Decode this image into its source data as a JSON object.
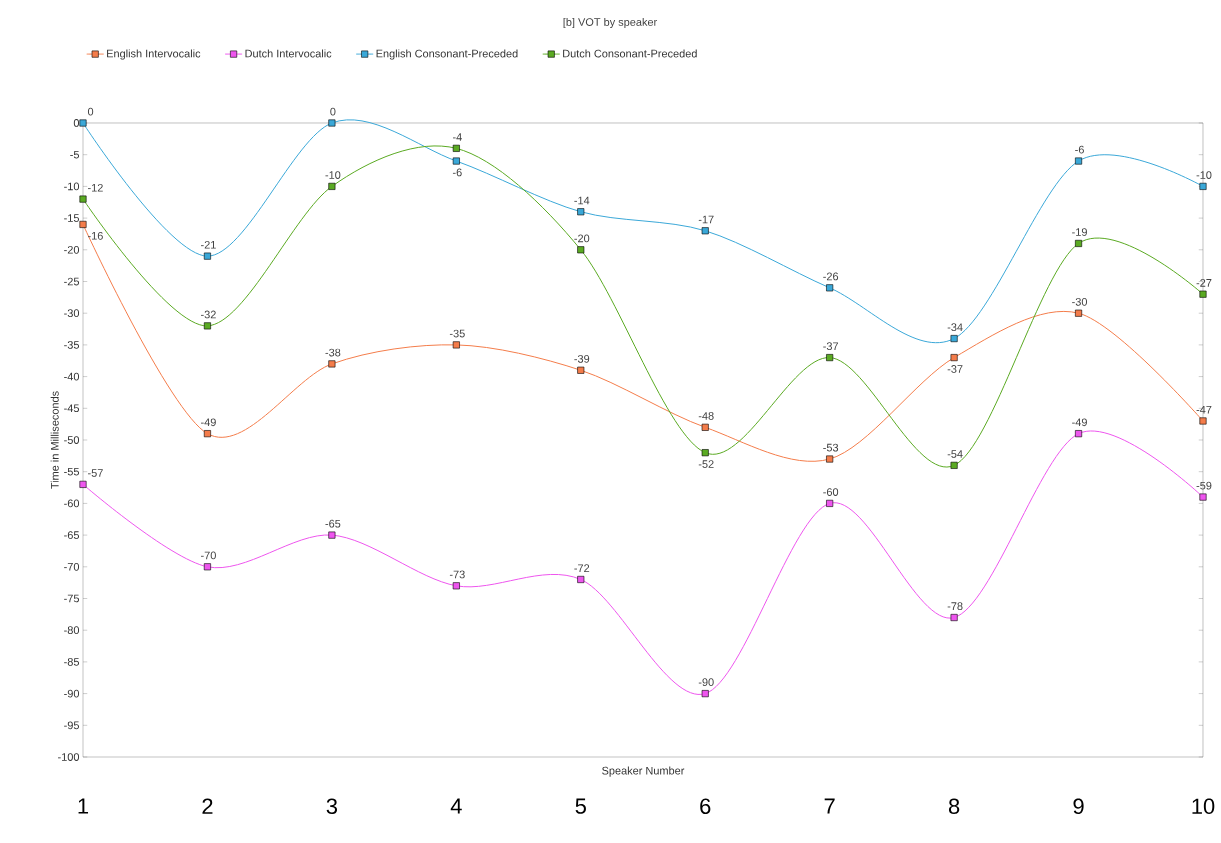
{
  "chart_data": {
    "type": "line",
    "title": "[b] VOT by speaker",
    "xlabel": "Speaker Number",
    "ylabel": "Time in Milliseconds",
    "categories": [
      "1",
      "2",
      "3",
      "4",
      "5",
      "6",
      "7",
      "8",
      "9",
      "10"
    ],
    "series": [
      {
        "name": "English Intervocalic",
        "color": "#f47c4a",
        "values": [
          -16,
          -49,
          -38,
          -35,
          -39,
          -48,
          -53,
          -37,
          -30,
          -47
        ],
        "value_labels": [
          "-16",
          "-49",
          "-38",
          "-35",
          "-39",
          "-48",
          "-53",
          "-37",
          "-30",
          "-47"
        ]
      },
      {
        "name": "Dutch Intervocalic",
        "color": "#ee55ee",
        "values": [
          -57,
          -70,
          -65,
          -73,
          -72,
          -90,
          -60,
          -78,
          -49,
          -59
        ],
        "value_labels": [
          "-57",
          "-70",
          "-65",
          "-73",
          "-72",
          "-90",
          "-60",
          "-78",
          "-49",
          "-59"
        ]
      },
      {
        "name": "English Consonant-Preceded",
        "color": "#3aa8d8",
        "values": [
          0,
          -21,
          0,
          -6,
          -14,
          -17,
          -26,
          -34,
          -6,
          -10
        ],
        "value_labels": [
          "0",
          "-21",
          "0",
          "-6",
          "-14",
          "-17",
          "-26",
          "-34",
          "-6",
          "-10"
        ]
      },
      {
        "name": "Dutch Consonant-Preceded",
        "color": "#5aaa22",
        "values": [
          -12,
          -32,
          -10,
          -4,
          -20,
          -52,
          -37,
          -54,
          -19,
          -27
        ],
        "value_labels": [
          "-12",
          "-32",
          "-10",
          "-4",
          "-20",
          "-52",
          "-37",
          "-54",
          "-19",
          "-27"
        ]
      }
    ],
    "ylim": [
      -100,
      0
    ],
    "yticks": [
      -100,
      -95,
      -90,
      -85,
      -80,
      -75,
      -70,
      -65,
      -60,
      -55,
      -50,
      -45,
      -40,
      -35,
      -30,
      -25,
      -20,
      -15,
      -10,
      -5,
      0
    ],
    "grid": false,
    "legend": "top",
    "marker": "square",
    "line_style": "solid"
  }
}
